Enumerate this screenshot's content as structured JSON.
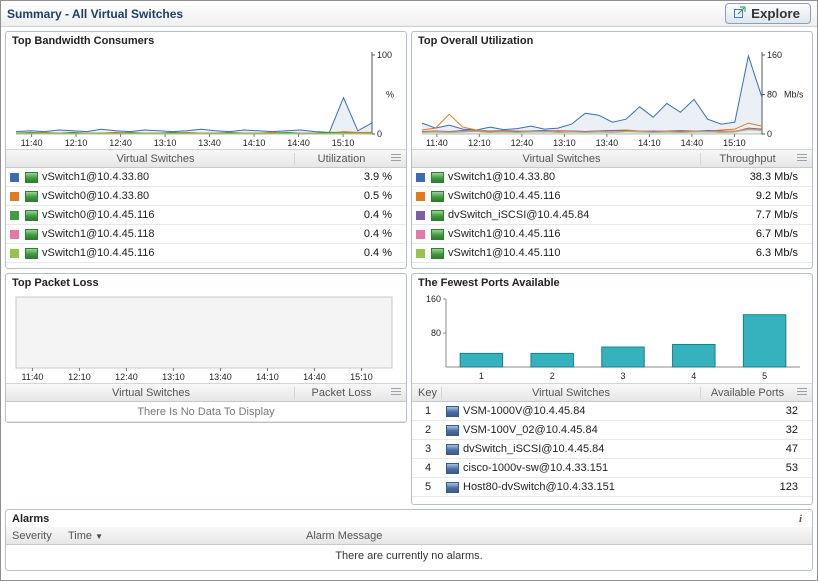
{
  "header": {
    "title": "Summary - All Virtual Switches",
    "explore_button": "Explore"
  },
  "icons": {
    "explore": "arrow-out-of-box",
    "info_char": "i",
    "sort_desc": "▼",
    "menu": "column-menu",
    "vswitch": "green-switch-icon",
    "dvswitch": "blue-switch-icon"
  },
  "bandwidth_panel": {
    "title": "Top Bandwidth Consumers",
    "columns": {
      "switches": "Virtual Switches",
      "value": "Utilization"
    },
    "rows": [
      {
        "color": "#3a6db5",
        "name": "vSwitch1@10.4.33.80",
        "value": "3.9 %"
      },
      {
        "color": "#e07b1e",
        "name": "vSwitch0@10.4.33.80",
        "value": "0.5 %"
      },
      {
        "color": "#3f9c3f",
        "name": "vSwitch0@10.4.45.116",
        "value": "0.4 %"
      },
      {
        "color": "#e678a8",
        "name": "vSwitch1@10.4.45.118",
        "value": "0.4 %"
      },
      {
        "color": "#96c24e",
        "name": "vSwitch1@10.4.45.116",
        "value": "0.4 %"
      }
    ]
  },
  "utilization_panel": {
    "title": "Top Overall Utilization",
    "columns": {
      "switches": "Virtual Switches",
      "value": "Throughput"
    },
    "rows": [
      {
        "color": "#3a6db5",
        "name": "vSwitch1@10.4.33.80",
        "value": "38.3 Mb/s"
      },
      {
        "color": "#e07b1e",
        "name": "vSwitch0@10.4.45.116",
        "value": "9.2 Mb/s"
      },
      {
        "color": "#7d5fa8",
        "name": "dvSwitch_iSCSI@10.4.45.84",
        "value": "7.7 Mb/s"
      },
      {
        "color": "#e678a8",
        "name": "vSwitch1@10.4.45.116",
        "value": "6.7 Mb/s"
      },
      {
        "color": "#96c24e",
        "name": "vSwitch1@10.4.45.110",
        "value": "6.3 Mb/s"
      }
    ]
  },
  "packetloss_panel": {
    "title": "Top Packet Loss",
    "columns": {
      "switches": "Virtual Switches",
      "value": "Packet Loss"
    },
    "empty_message": "There Is No Data To Display"
  },
  "ports_panel": {
    "title": "The Fewest Ports Available",
    "columns": {
      "key": "Key",
      "switches": "Virtual Switches",
      "value": "Available Ports"
    },
    "rows": [
      {
        "key": "1",
        "name": "VSM-1000V@10.4.45.84",
        "value": "32"
      },
      {
        "key": "2",
        "name": "VSM-100V_02@10.4.45.84",
        "value": "32"
      },
      {
        "key": "3",
        "name": "dvSwitch_iSCSI@10.4.45.84",
        "value": "47"
      },
      {
        "key": "4",
        "name": "cisco-1000v-sw@10.4.33.151",
        "value": "53"
      },
      {
        "key": "5",
        "name": "Host80-dvSwitch@10.4.33.151",
        "value": "123"
      }
    ]
  },
  "alarms_panel": {
    "title": "Alarms",
    "columns": {
      "severity": "Severity",
      "time": "Time",
      "message": "Alarm Message"
    },
    "empty_message": "There are currently no alarms."
  },
  "chart_data": [
    {
      "id": "bandwidth-chart",
      "type": "line",
      "x_labels": [
        "11:40",
        "12:10",
        "12:40",
        "13:10",
        "13:40",
        "14:10",
        "14:40",
        "15:10"
      ],
      "ylim": [
        0,
        100
      ],
      "yticks": [
        0,
        100
      ],
      "ylabel": "%",
      "legend_position": "table-below",
      "grid": false,
      "series": [
        {
          "name": "vSwitch1@10.4.33.80",
          "color": "#3a6db5",
          "values": [
            3,
            4,
            3,
            5,
            4,
            3,
            6,
            4,
            3,
            5,
            4,
            3,
            4,
            6,
            4,
            3,
            5,
            4,
            3,
            4,
            5,
            3,
            2,
            46,
            4,
            14
          ]
        },
        {
          "name": "vSwitch0@10.4.33.80",
          "color": "#e07b1e",
          "values": [
            1,
            1,
            2,
            1,
            1,
            1,
            1,
            2,
            1,
            1,
            1,
            1,
            2,
            1,
            1,
            1,
            1,
            1,
            2,
            1,
            1,
            1,
            1,
            3,
            2,
            2
          ]
        },
        {
          "name": "vSwitch0@10.4.45.116",
          "color": "#3f9c3f",
          "values": [
            1,
            2,
            1,
            1,
            2,
            1,
            1,
            1,
            2,
            1,
            1,
            2,
            1,
            1,
            1,
            2,
            1,
            1,
            1,
            2,
            1,
            1,
            2,
            2,
            1,
            1
          ]
        },
        {
          "name": "vSwitch1@10.4.45.118",
          "color": "#e678a8",
          "values": [
            0.5,
            1,
            0.5,
            1,
            0.5,
            1,
            0.5,
            0.5,
            1,
            0.5,
            1,
            0.5,
            0.5,
            1,
            0.5,
            1,
            0.5,
            0.5,
            1,
            0.5,
            1,
            0.5,
            0.5,
            1,
            1,
            0.5
          ]
        },
        {
          "name": "vSwitch1@10.4.45.116",
          "color": "#96c24e",
          "values": [
            0.4,
            0.4,
            0.8,
            0.4,
            0.4,
            0.8,
            0.4,
            0.4,
            0.4,
            0.8,
            0.4,
            0.4,
            0.8,
            0.4,
            0.4,
            0.4,
            0.8,
            0.4,
            0.4,
            0.8,
            0.4,
            0.4,
            0.4,
            0.8,
            0.6,
            0.4
          ]
        }
      ]
    },
    {
      "id": "utilization-chart",
      "type": "line",
      "x_labels": [
        "11:40",
        "12:10",
        "12:40",
        "13:10",
        "13:40",
        "14:10",
        "14:40",
        "15:10"
      ],
      "ylim": [
        0,
        160
      ],
      "yticks": [
        0,
        80,
        160
      ],
      "ylabel": "Mb/s",
      "legend_position": "table-below",
      "grid": false,
      "series": [
        {
          "name": "vSwitch1@10.4.33.80",
          "color": "#3a6db5",
          "values": [
            22,
            12,
            18,
            10,
            8,
            14,
            9,
            11,
            16,
            10,
            12,
            20,
            42,
            38,
            24,
            30,
            55,
            34,
            62,
            44,
            70,
            30,
            20,
            24,
            158,
            74
          ]
        },
        {
          "name": "vSwitch0@10.4.45.116",
          "color": "#e07b1e",
          "values": [
            8,
            12,
            40,
            14,
            8,
            6,
            7,
            6,
            5,
            6,
            7,
            6,
            5,
            6,
            7,
            8,
            6,
            5,
            6,
            7,
            6,
            5,
            8,
            10,
            22,
            16
          ]
        },
        {
          "name": "dvSwitch_iSCSI@10.4.45.84",
          "color": "#7d5fa8",
          "values": [
            5,
            6,
            5,
            7,
            6,
            5,
            6,
            5,
            6,
            7,
            5,
            6,
            5,
            6,
            7,
            6,
            5,
            6,
            5,
            6,
            5,
            7,
            6,
            5,
            12,
            10
          ]
        },
        {
          "name": "vSwitch1@10.4.45.116",
          "color": "#e678a8",
          "values": [
            4,
            5,
            4,
            5,
            6,
            4,
            5,
            4,
            5,
            4,
            6,
            5,
            4,
            5,
            4,
            5,
            6,
            4,
            5,
            4,
            5,
            4,
            5,
            6,
            10,
            8
          ]
        },
        {
          "name": "vSwitch1@10.4.45.110",
          "color": "#96c24e",
          "values": [
            3,
            4,
            3,
            4,
            5,
            3,
            4,
            3,
            4,
            5,
            3,
            4,
            3,
            4,
            3,
            5,
            4,
            3,
            4,
            3,
            4,
            5,
            3,
            4,
            9,
            7
          ]
        }
      ]
    },
    {
      "id": "packetloss-chart",
      "type": "empty",
      "x_labels": [
        "11:40",
        "12:10",
        "12:40",
        "13:10",
        "13:40",
        "14:10",
        "14:40",
        "15:10"
      ],
      "ylim": [
        0,
        1
      ],
      "series": []
    },
    {
      "id": "ports-chart",
      "type": "bar",
      "categories": [
        "1",
        "2",
        "3",
        "4",
        "5"
      ],
      "values": [
        32,
        32,
        47,
        53,
        123
      ],
      "ylim": [
        0,
        160
      ],
      "yticks": [
        80,
        160
      ],
      "grid": false,
      "bar_color": "#35b2bd",
      "bar_border": "#17808c",
      "title": "",
      "xlabel": "",
      "ylabel": ""
    }
  ]
}
